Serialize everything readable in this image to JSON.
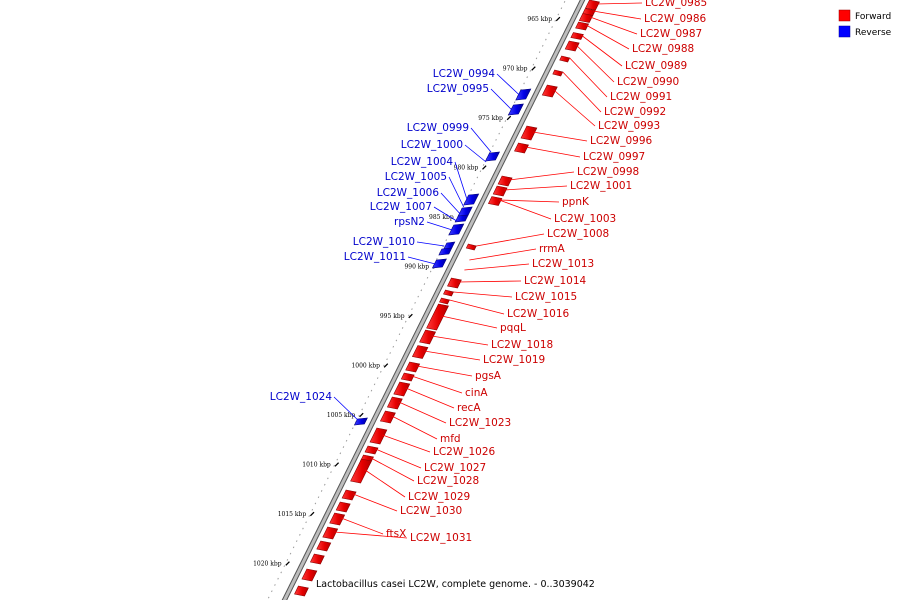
{
  "legend": [
    {
      "label": "Forward",
      "color": "#ff0000"
    },
    {
      "label": "Reverse",
      "color": "#0000ff"
    }
  ],
  "caption": "Lactobacillus casei LC2W, complete genome. - 0..3039042",
  "ticks": [
    {
      "kbp": 965,
      "label": "965 kbp"
    },
    {
      "kbp": 970,
      "label": "970 kbp"
    },
    {
      "kbp": 975,
      "label": "975 kbp"
    },
    {
      "kbp": 980,
      "label": "980 kbp"
    },
    {
      "kbp": 985,
      "label": "985 kbp"
    },
    {
      "kbp": 990,
      "label": "990 kbp"
    },
    {
      "kbp": 995,
      "label": "995 kbp"
    },
    {
      "kbp": 1000,
      "label": "1000 kbp"
    },
    {
      "kbp": 1005,
      "label": "1005 kbp"
    },
    {
      "kbp": 1010,
      "label": "1010 kbp"
    },
    {
      "kbp": 1015,
      "label": "1015 kbp"
    },
    {
      "kbp": 1020,
      "label": "1020 kbp"
    }
  ],
  "forward_genes": [
    "LC2W_0985",
    "LC2W_0986",
    "LC2W_0987",
    "LC2W_0988",
    "LC2W_0989",
    "LC2W_0990",
    "LC2W_0991",
    "LC2W_0992",
    "LC2W_0993",
    "LC2W_0996",
    "LC2W_0997",
    "LC2W_0998",
    "LC2W_1001",
    "ppnK",
    "LC2W_1003",
    "LC2W_1008",
    "rrmA",
    "LC2W_1013",
    "LC2W_1014",
    "LC2W_1015",
    "LC2W_1016",
    "pqqL",
    "LC2W_1018",
    "LC2W_1019",
    "pgsA",
    "cinA",
    "recA",
    "LC2W_1023",
    "mfd",
    "LC2W_1026",
    "LC2W_1027",
    "LC2W_1028",
    "LC2W_1029",
    "LC2W_1030",
    "ftsX",
    "LC2W_1031"
  ],
  "reverse_genes": [
    "LC2W_0994",
    "LC2W_0995",
    "LC2W_0999",
    "LC2W_1000",
    "LC2W_1004",
    "LC2W_1005",
    "LC2W_1006",
    "LC2W_1007",
    "rpsN2",
    "LC2W_1010",
    "LC2W_1011",
    "LC2W_1024"
  ]
}
